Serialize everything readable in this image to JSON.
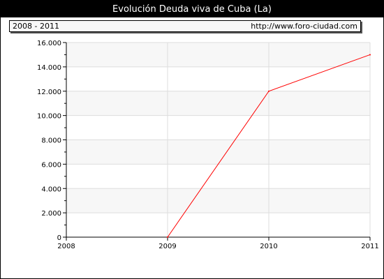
{
  "header": {
    "title": "Evolución Deuda viva de Cuba (La)",
    "range": "2008 - 2011",
    "url": "http://www.foro-ciudad.com"
  },
  "chart_data": {
    "type": "line",
    "title": "Evolución Deuda viva de Cuba (La)",
    "xlabel": "",
    "ylabel": "",
    "x": [
      2009,
      2010,
      2011
    ],
    "series": [
      {
        "values": [
          0,
          12000,
          15000
        ],
        "color": "#ff0000"
      }
    ],
    "xlim": [
      2008,
      2011
    ],
    "ylim": [
      0,
      16000
    ],
    "x_ticks": [
      "2008",
      "2009",
      "2010",
      "2011"
    ],
    "y_ticks": [
      "0",
      "2.000",
      "4.000",
      "6.000",
      "8.000",
      "10.000",
      "12.000",
      "14.000",
      "16.000"
    ],
    "grid": true,
    "band_color": "#f7f7f7",
    "grid_color": "#dddddd"
  }
}
